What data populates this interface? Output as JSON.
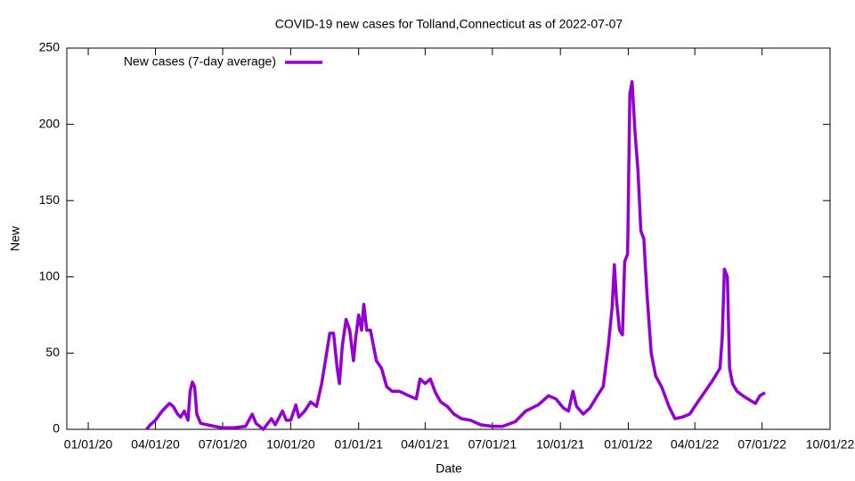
{
  "chart_data": {
    "type": "line",
    "title": "COVID-19 new cases for Tolland,Connecticut as of 2022-07-07",
    "x_label": "Date",
    "y_label": "New",
    "xlim": [
      "2019-12-03",
      "2022-10-01"
    ],
    "xticks": [
      {
        "value": "2020-01-01",
        "label": "01/01/20"
      },
      {
        "value": "2020-04-01",
        "label": "04/01/20"
      },
      {
        "value": "2020-07-01",
        "label": "07/01/20"
      },
      {
        "value": "2020-10-01",
        "label": "10/01/20"
      },
      {
        "value": "2021-01-01",
        "label": "01/01/21"
      },
      {
        "value": "2021-04-01",
        "label": "04/01/21"
      },
      {
        "value": "2021-07-01",
        "label": "07/01/21"
      },
      {
        "value": "2021-10-01",
        "label": "10/01/21"
      },
      {
        "value": "2022-01-01",
        "label": "01/01/22"
      },
      {
        "value": "2022-04-01",
        "label": "04/01/22"
      },
      {
        "value": "2022-07-01",
        "label": "07/01/22"
      },
      {
        "value": "2022-10-01",
        "label": "10/01/22"
      }
    ],
    "ylim": [
      0,
      250
    ],
    "yticks": [
      0,
      50,
      100,
      150,
      200,
      250
    ],
    "legend": "top-left",
    "x": [
      "2020-03-20",
      "2020-03-25",
      "2020-04-01",
      "2020-04-10",
      "2020-04-20",
      "2020-04-25",
      "2020-05-01",
      "2020-05-05",
      "2020-05-10",
      "2020-05-15",
      "2020-05-18",
      "2020-05-21",
      "2020-05-24",
      "2020-05-27",
      "2020-06-01",
      "2020-06-10",
      "2020-06-20",
      "2020-07-01",
      "2020-07-15",
      "2020-08-01",
      "2020-08-10",
      "2020-08-15",
      "2020-08-25",
      "2020-09-05",
      "2020-09-10",
      "2020-09-20",
      "2020-09-25",
      "2020-10-01",
      "2020-10-08",
      "2020-10-12",
      "2020-10-20",
      "2020-10-28",
      "2020-11-05",
      "2020-11-12",
      "2020-11-18",
      "2020-11-23",
      "2020-11-28",
      "2020-12-03",
      "2020-12-06",
      "2020-12-10",
      "2020-12-15",
      "2020-12-20",
      "2020-12-25",
      "2020-12-28",
      "2021-01-01",
      "2021-01-05",
      "2021-01-08",
      "2021-01-12",
      "2021-01-17",
      "2021-01-25",
      "2021-02-01",
      "2021-02-08",
      "2021-02-15",
      "2021-02-25",
      "2021-03-10",
      "2021-03-20",
      "2021-03-25",
      "2021-04-01",
      "2021-04-08",
      "2021-04-15",
      "2021-04-22",
      "2021-05-01",
      "2021-05-10",
      "2021-05-20",
      "2021-06-01",
      "2021-06-15",
      "2021-07-01",
      "2021-07-15",
      "2021-08-01",
      "2021-08-15",
      "2021-09-01",
      "2021-09-15",
      "2021-09-25",
      "2021-10-05",
      "2021-10-12",
      "2021-10-18",
      "2021-10-23",
      "2021-11-01",
      "2021-11-10",
      "2021-11-20",
      "2021-11-28",
      "2021-12-05",
      "2021-12-10",
      "2021-12-13",
      "2021-12-16",
      "2021-12-20",
      "2021-12-24",
      "2021-12-27",
      "2021-12-31",
      "2022-01-03",
      "2022-01-06",
      "2022-01-10",
      "2022-01-14",
      "2022-01-18",
      "2022-01-22",
      "2022-01-26",
      "2022-02-01",
      "2022-02-07",
      "2022-02-15",
      "2022-02-25",
      "2022-03-05",
      "2022-03-15",
      "2022-03-25",
      "2022-04-05",
      "2022-04-15",
      "2022-04-25",
      "2022-05-05",
      "2022-05-08",
      "2022-05-11",
      "2022-05-15",
      "2022-05-18",
      "2022-05-22",
      "2022-05-28",
      "2022-06-05",
      "2022-06-15",
      "2022-06-22",
      "2022-06-28",
      "2022-07-05"
    ],
    "series": [
      {
        "name": "New cases (7-day average)",
        "color": "#9400d3",
        "values": [
          0,
          3,
          6,
          12,
          17,
          15,
          10,
          8,
          12,
          6,
          25,
          31,
          28,
          10,
          4,
          3,
          2,
          1,
          1,
          2,
          10,
          4,
          0,
          7,
          3,
          12,
          6,
          6,
          16,
          8,
          12,
          18,
          15,
          30,
          48,
          63,
          63,
          40,
          30,
          55,
          72,
          65,
          45,
          60,
          75,
          65,
          82,
          65,
          65,
          45,
          40,
          28,
          25,
          25,
          22,
          20,
          33,
          30,
          33,
          24,
          18,
          15,
          10,
          7,
          6,
          3,
          2,
          2,
          5,
          12,
          16,
          22,
          20,
          14,
          12,
          25,
          15,
          10,
          14,
          22,
          28,
          55,
          80,
          108,
          85,
          65,
          62,
          110,
          115,
          220,
          228,
          195,
          170,
          130,
          125,
          90,
          50,
          35,
          28,
          15,
          7,
          8,
          10,
          18,
          25,
          32,
          40,
          60,
          105,
          100,
          40,
          30,
          25,
          22,
          19,
          17,
          22,
          24
        ]
      }
    ]
  }
}
